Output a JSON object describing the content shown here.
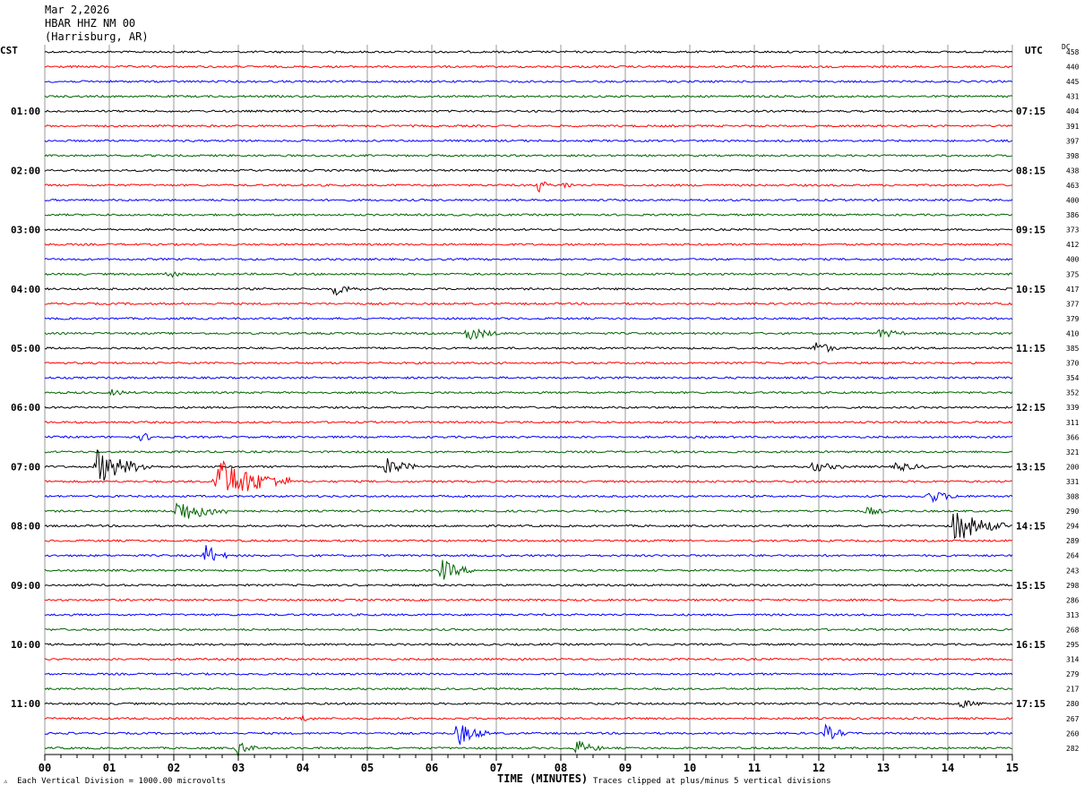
{
  "header": {
    "date": "Mar 2,2026",
    "station": "HBAR HHZ NM 00",
    "location": "(Harrisburg, AR)"
  },
  "left_tz": "CST",
  "right_tz": "UTC",
  "dc_label": "DC",
  "footer": {
    "left": "Each Vertical Division = 1000.00 microvolts",
    "center": "TIME (MINUTES)",
    "right": "Traces clipped at plus/minus 5 vertical divisions"
  },
  "chart_data": {
    "type": "line",
    "title": "HBAR HHZ NM 00",
    "xlabel": "TIME (MINUTES)",
    "ylabel": "",
    "xlim": [
      0,
      15
    ],
    "x_ticks": [
      "00",
      "01",
      "02",
      "03",
      "04",
      "05",
      "06",
      "07",
      "08",
      "09",
      "10",
      "11",
      "12",
      "13",
      "14",
      "15"
    ],
    "trace_colors": [
      "#000000",
      "#ff0000",
      "#0000ff",
      "#006400"
    ],
    "left_time_labels": [
      "01:00",
      "02:00",
      "03:00",
      "04:00",
      "05:00",
      "06:00",
      "07:00",
      "08:00",
      "09:00",
      "10:00",
      "11:00"
    ],
    "right_time_labels": [
      "07:15",
      "08:15",
      "09:15",
      "10:15",
      "11:15",
      "12:15",
      "13:15",
      "14:15",
      "15:15",
      "16:15",
      "17:15"
    ],
    "hour_label_rows": [
      4,
      8,
      12,
      16,
      20,
      24,
      28,
      32,
      36,
      40,
      44
    ],
    "dc_offsets": [
      458,
      440,
      445,
      431,
      404,
      391,
      397,
      398,
      438,
      463,
      400,
      386,
      373,
      412,
      400,
      375,
      417,
      377,
      379,
      410,
      385,
      370,
      354,
      352,
      339,
      311,
      366,
      321,
      200,
      331,
      308,
      290,
      294,
      289,
      264,
      243,
      298,
      286,
      313,
      268,
      295,
      314,
      279,
      217,
      280,
      267,
      260,
      282
    ],
    "events": [
      {
        "row": 9,
        "minute": 7.65,
        "amp": 1.2,
        "dur": 0.2
      },
      {
        "row": 9,
        "minute": 8.05,
        "amp": 0.8,
        "dur": 0.15
      },
      {
        "row": 15,
        "minute": 1.9,
        "amp": 0.6,
        "dur": 0.3
      },
      {
        "row": 16,
        "minute": 4.5,
        "amp": 1.0,
        "dur": 0.4
      },
      {
        "row": 19,
        "minute": 6.55,
        "amp": 1.3,
        "dur": 0.5
      },
      {
        "row": 19,
        "minute": 12.95,
        "amp": 0.8,
        "dur": 0.4
      },
      {
        "row": 20,
        "minute": 11.95,
        "amp": 1.4,
        "dur": 0.35
      },
      {
        "row": 23,
        "minute": 1.05,
        "amp": 0.5,
        "dur": 0.3
      },
      {
        "row": 26,
        "minute": 1.5,
        "amp": 0.7,
        "dur": 0.3
      },
      {
        "row": 28,
        "minute": 0.8,
        "amp": 2.8,
        "dur": 0.9
      },
      {
        "row": 28,
        "minute": 5.3,
        "amp": 1.5,
        "dur": 0.5
      },
      {
        "row": 28,
        "minute": 11.9,
        "amp": 0.9,
        "dur": 0.5
      },
      {
        "row": 28,
        "minute": 13.2,
        "amp": 0.8,
        "dur": 0.5
      },
      {
        "row": 29,
        "minute": 2.65,
        "amp": 4.0,
        "dur": 1.2
      },
      {
        "row": 30,
        "minute": 13.7,
        "amp": 1.1,
        "dur": 0.5
      },
      {
        "row": 31,
        "minute": 2.05,
        "amp": 2.0,
        "dur": 0.8
      },
      {
        "row": 31,
        "minute": 12.75,
        "amp": 0.8,
        "dur": 0.3
      },
      {
        "row": 32,
        "minute": 14.1,
        "amp": 2.8,
        "dur": 0.8
      },
      {
        "row": 34,
        "minute": 2.5,
        "amp": 1.8,
        "dur": 0.35
      },
      {
        "row": 35,
        "minute": 6.15,
        "amp": 1.8,
        "dur": 0.5
      },
      {
        "row": 44,
        "minute": 14.2,
        "amp": 0.6,
        "dur": 0.4
      },
      {
        "row": 45,
        "minute": 4.0,
        "amp": 0.6,
        "dur": 0.2
      },
      {
        "row": 46,
        "minute": 6.4,
        "amp": 2.0,
        "dur": 0.5
      },
      {
        "row": 46,
        "minute": 12.1,
        "amp": 1.3,
        "dur": 0.4
      },
      {
        "row": 47,
        "minute": 3.0,
        "amp": 1.2,
        "dur": 0.3
      },
      {
        "row": 47,
        "minute": 8.25,
        "amp": 1.3,
        "dur": 0.4
      }
    ]
  }
}
